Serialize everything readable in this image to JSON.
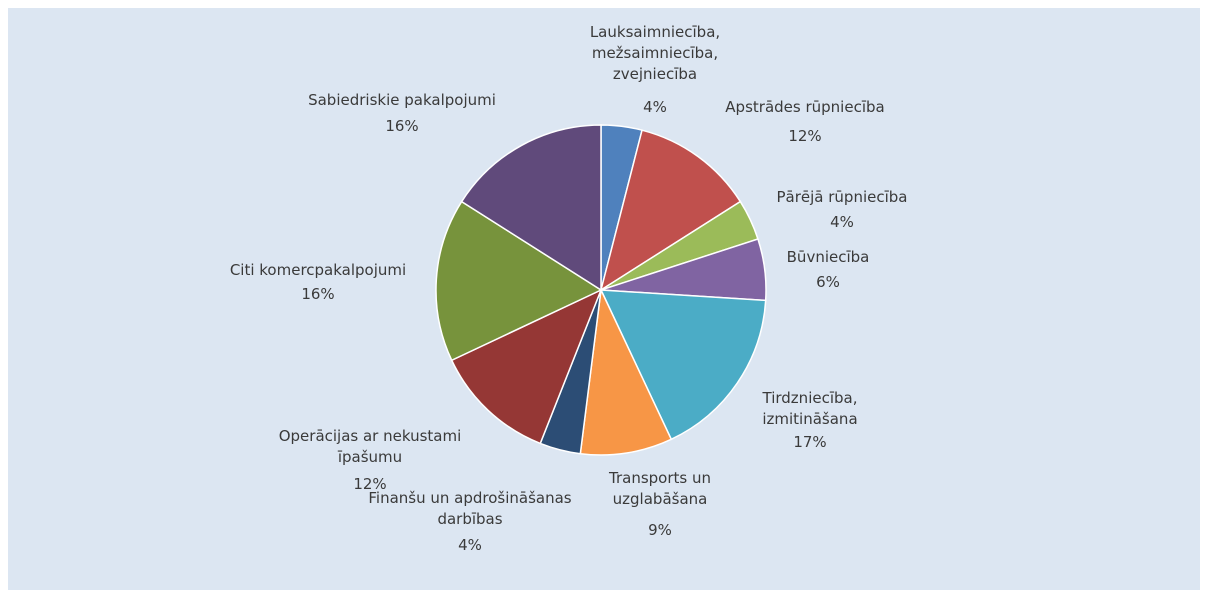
{
  "chart_data": {
    "type": "pie",
    "categories": [
      "Lauksaimniecība, mežsaimniecība, zvejniecība",
      "Apstrādes rūpniecība",
      "Pārējā rūpniecība",
      "Būvniecība",
      "Tirdzniecība, izmitināšana",
      "Transports un uzglabāšana",
      "Finanšu un apdrošināšanas darbības",
      "Operācijas ar nekustami īpašumu",
      "Citi komercpakalpojumi",
      "Sabiedriskie pakalpojumi"
    ],
    "values": [
      4,
      12,
      4,
      6,
      17,
      9,
      4,
      12,
      16,
      16
    ],
    "value_labels": [
      "4%",
      "12%",
      "4%",
      "6%",
      "17%",
      "9%",
      "4%",
      "12%",
      "16%",
      "16%"
    ],
    "colors": [
      "#4f81bd",
      "#c0504d",
      "#9bbb59",
      "#8064a2",
      "#4bacc6",
      "#f79646",
      "#2c4d75",
      "#953735",
      "#77933c",
      "#604a7b"
    ]
  }
}
